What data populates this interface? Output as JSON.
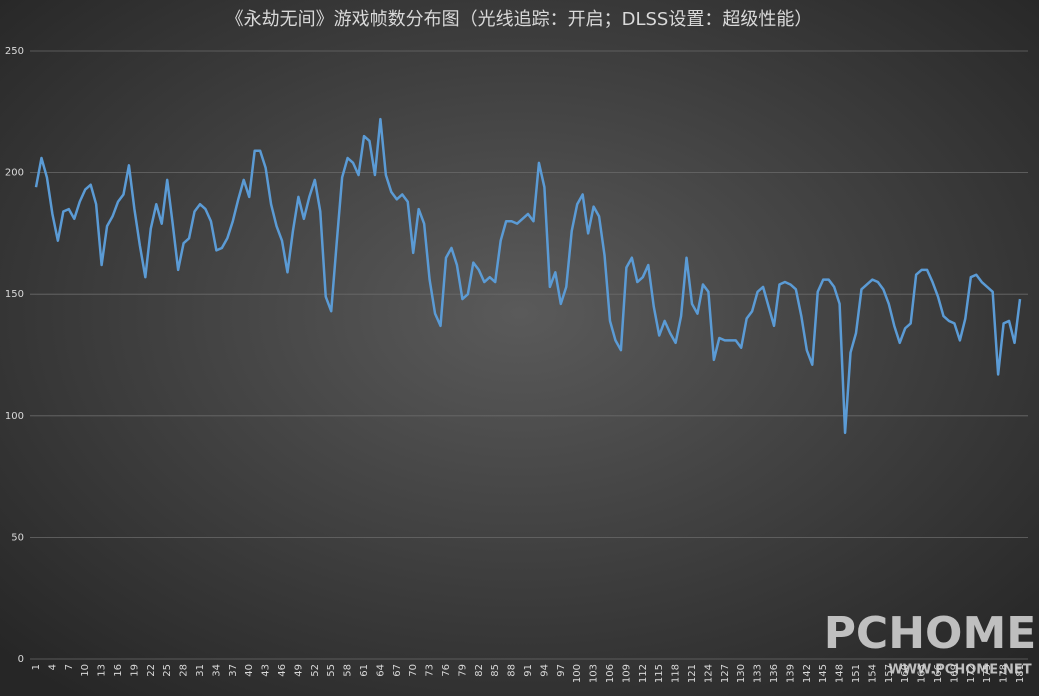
{
  "chart_data": {
    "type": "line",
    "title": "《永劫无间》游戏帧数分布图（光线追踪：开启；DLSS设置：超级性能）",
    "watermark": {
      "brand": "PCHOME",
      "url": "WWW.PCHOME.NET"
    },
    "categories": [
      "1",
      null,
      null,
      "4",
      null,
      null,
      "7",
      null,
      null,
      "10",
      null,
      null,
      "13",
      null,
      null,
      "16",
      null,
      null,
      "19",
      null,
      null,
      "22",
      null,
      null,
      "25",
      null,
      null,
      "28",
      null,
      null,
      "31",
      null,
      null,
      "34",
      null,
      null,
      "37",
      null,
      null,
      "40",
      null,
      null,
      "43",
      null,
      null,
      "46",
      null,
      null,
      "49",
      null,
      null,
      "52",
      null,
      null,
      "55",
      null,
      null,
      "58",
      null,
      null,
      "61",
      null,
      null,
      "64",
      null,
      null,
      "67",
      null,
      null,
      "70",
      null,
      null,
      "73",
      null,
      null,
      "76",
      null,
      null,
      "79",
      null,
      null,
      "82",
      null,
      null,
      "85",
      null,
      null,
      "88",
      null,
      null,
      "91",
      null,
      null,
      "94",
      null,
      null,
      "97",
      null,
      null,
      "100",
      null,
      null,
      "103",
      null,
      null,
      "106",
      null,
      null,
      "109",
      null,
      null,
      "112",
      null,
      null,
      "115",
      null,
      null,
      "118",
      null,
      null,
      "121",
      null,
      null,
      "124",
      null,
      null,
      "127",
      null,
      null,
      "130",
      null,
      null,
      "133",
      null,
      null,
      "136",
      null,
      null,
      "139",
      null,
      null,
      "142",
      null,
      null,
      "145",
      null,
      null,
      "148",
      null,
      null,
      "151",
      null,
      null,
      "154",
      null,
      null,
      "157",
      null,
      null,
      "160",
      null,
      null,
      "163",
      null,
      null,
      "166",
      null,
      null,
      "169",
      null,
      null,
      "172",
      null,
      null,
      "175",
      null,
      null,
      "178",
      null,
      null,
      "181"
    ],
    "series": [
      {
        "color": "#5b9bd5",
        "values": [
          194,
          206,
          198,
          183,
          172,
          184,
          185,
          181,
          188,
          193,
          195,
          187,
          162,
          178,
          182,
          188,
          191,
          203,
          185,
          170,
          157,
          177,
          187,
          179,
          197,
          179,
          160,
          171,
          173,
          184,
          187,
          185,
          180,
          168,
          169,
          173,
          180,
          189,
          197,
          190,
          209,
          209,
          202,
          187,
          178,
          172,
          159,
          176,
          190,
          181,
          190,
          197,
          184,
          149,
          143,
          171,
          198,
          206,
          204,
          199,
          215,
          213,
          199,
          222,
          199,
          192,
          189,
          191,
          188,
          167,
          185,
          179,
          156,
          142,
          137,
          165,
          169,
          162,
          148,
          150,
          163,
          160,
          155,
          157,
          155,
          172,
          180,
          180,
          179,
          181,
          183,
          180,
          204,
          194,
          153,
          159,
          146,
          153,
          176,
          187,
          191,
          175,
          186,
          182,
          166,
          139,
          131,
          127,
          161,
          165,
          155,
          157,
          162,
          145,
          133,
          139,
          134,
          130,
          141,
          165,
          146,
          142,
          154,
          151,
          123,
          132,
          131,
          131,
          131,
          128,
          140,
          143,
          151,
          153,
          145,
          137,
          154,
          155,
          154,
          152,
          141,
          127,
          121,
          151,
          156,
          156,
          153,
          146,
          93,
          126,
          134,
          152,
          154,
          156,
          155,
          152,
          146,
          137,
          130,
          136,
          138,
          158,
          160,
          160,
          155,
          149,
          141,
          139,
          138,
          131,
          140,
          157,
          158,
          155,
          153,
          151,
          117,
          138,
          139,
          130,
          148
        ]
      }
    ],
    "ylim": [
      0,
      250
    ],
    "yticks": [
      0,
      50,
      100,
      150,
      200,
      250
    ],
    "grid": true
  }
}
